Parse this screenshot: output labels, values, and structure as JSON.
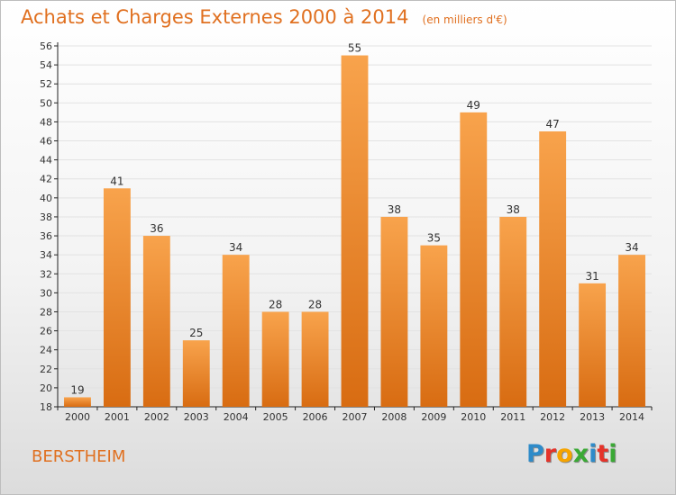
{
  "header": {
    "title": "Achats et Charges Externes 2000 à 2014",
    "unit": "(en milliers d'€)"
  },
  "footer": {
    "commune": "BERSTHEIM",
    "logo_letters": [
      "P",
      "r",
      "o",
      "x",
      "i",
      "t",
      "i"
    ],
    "logo_colors": [
      "#2e8bc9",
      "#e5332a",
      "#f6a400",
      "#3aa935",
      "#2e8bc9",
      "#e5332a",
      "#3aa935"
    ]
  },
  "colors": {
    "accent": "#e07020",
    "bar_light": "#f8a34c",
    "bar_dark": "#d86c12",
    "grid": "#e2e2e2",
    "axis": "#222222"
  },
  "chart_data": {
    "type": "bar",
    "title": "Achats et Charges Externes 2000 à 2014",
    "xlabel": "",
    "ylabel": "",
    "categories": [
      "2000",
      "2001",
      "2002",
      "2003",
      "2004",
      "2005",
      "2006",
      "2007",
      "2008",
      "2009",
      "2010",
      "2011",
      "2012",
      "2013",
      "2014"
    ],
    "values": [
      19,
      41,
      36,
      25,
      34,
      28,
      28,
      55,
      38,
      35,
      49,
      38,
      47,
      31,
      34
    ],
    "ylim": [
      18,
      56
    ],
    "ytick_step": 2,
    "grid": true,
    "data_labels": true
  }
}
